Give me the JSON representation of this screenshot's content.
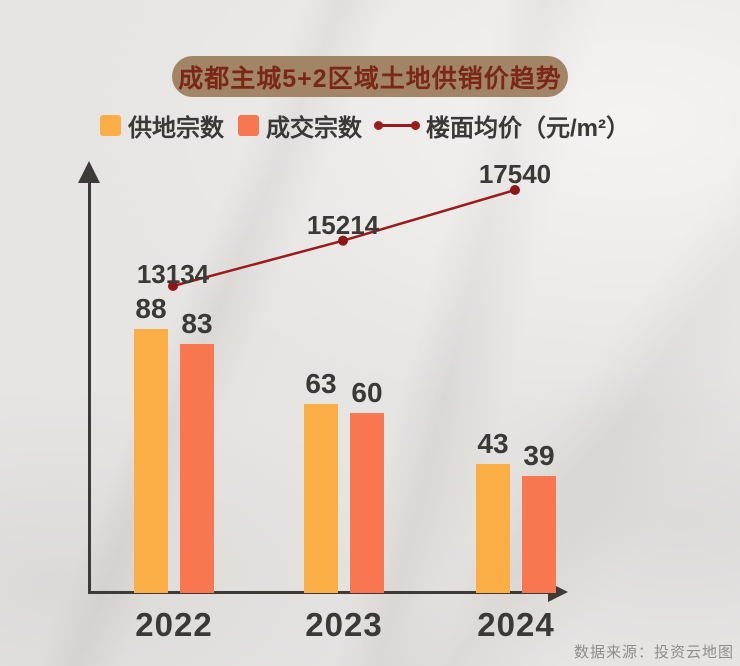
{
  "title": {
    "text": "成都主城5+2区域土地供销价趋势"
  },
  "legend": {
    "items": [
      {
        "label": "供地宗数",
        "swatch_color": "#FBAE45",
        "marker": "square"
      },
      {
        "label": "成交宗数",
        "swatch_color": "#F87750",
        "marker": "square"
      },
      {
        "label": "楼面均价（元/m²）",
        "swatch_color": "#9B1B1B",
        "marker": "line-with-dots"
      }
    ]
  },
  "source": {
    "text": "数据来源：投资云地图"
  },
  "colors": {
    "background": "#E7E5E3",
    "title_pill_bg": "#A28566",
    "title_text": "#7B2718",
    "supply_bar": "#FBAE45",
    "deal_bar": "#F87750",
    "price_line": "#9B1B1B",
    "axis": "#3E3A37",
    "label_text": "#3A3936",
    "source_text": "#8F8D8C"
  },
  "chart_data": {
    "type": "bar",
    "subtype": "grouped bars with overlaid line series",
    "title": "成都主城5+2区域土地供销价趋势",
    "categories": [
      "2022",
      "2023",
      "2024"
    ],
    "series": [
      {
        "name": "供地宗数",
        "type": "bar",
        "color": "#FBAE45",
        "values": [
          88,
          63,
          43
        ]
      },
      {
        "name": "成交宗数",
        "type": "bar",
        "color": "#F87750",
        "values": [
          83,
          60,
          39
        ]
      },
      {
        "name": "楼面均价（元/m²）",
        "type": "line",
        "color": "#9B1B1B",
        "values": [
          13134,
          15214,
          17540
        ]
      }
    ],
    "xlabel": "",
    "ylabel": "",
    "grid": false,
    "legend_position": "top",
    "axis_style": "arrow-tipped axes, no tick marks, data labels on every point"
  }
}
